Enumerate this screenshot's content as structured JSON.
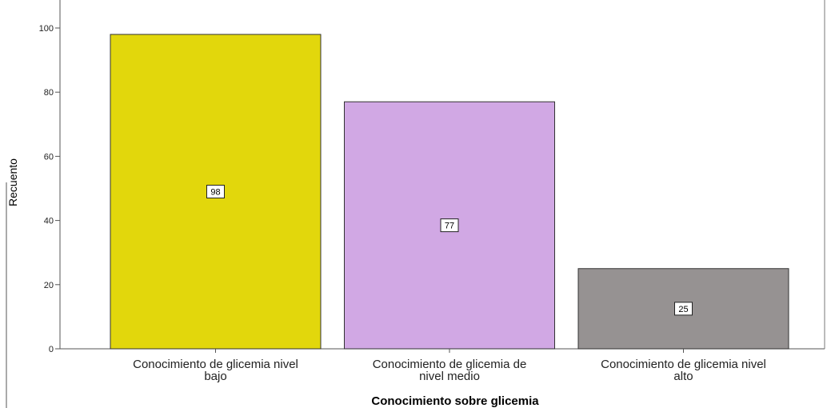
{
  "chart_data": {
    "type": "bar",
    "title": "",
    "xlabel": "Conocimiento  sobre glicemia",
    "ylabel": "Recuento",
    "categories": [
      [
        "Conocimiento de glicemia nivel",
        "bajo"
      ],
      [
        "Conocimiento de glicemia de",
        "nivel medio"
      ],
      [
        "Conocimiento de glicemia nivel",
        "alto"
      ]
    ],
    "values": [
      98,
      77,
      25
    ],
    "data_labels": [
      "98",
      "77",
      "25"
    ],
    "bar_colors": [
      "#e2d70c",
      "#d1a8e4",
      "#969292"
    ],
    "ylim": [
      0,
      100
    ],
    "yticks": [
      0,
      20,
      40,
      60,
      80,
      100
    ],
    "grid": false,
    "legend": "none"
  }
}
